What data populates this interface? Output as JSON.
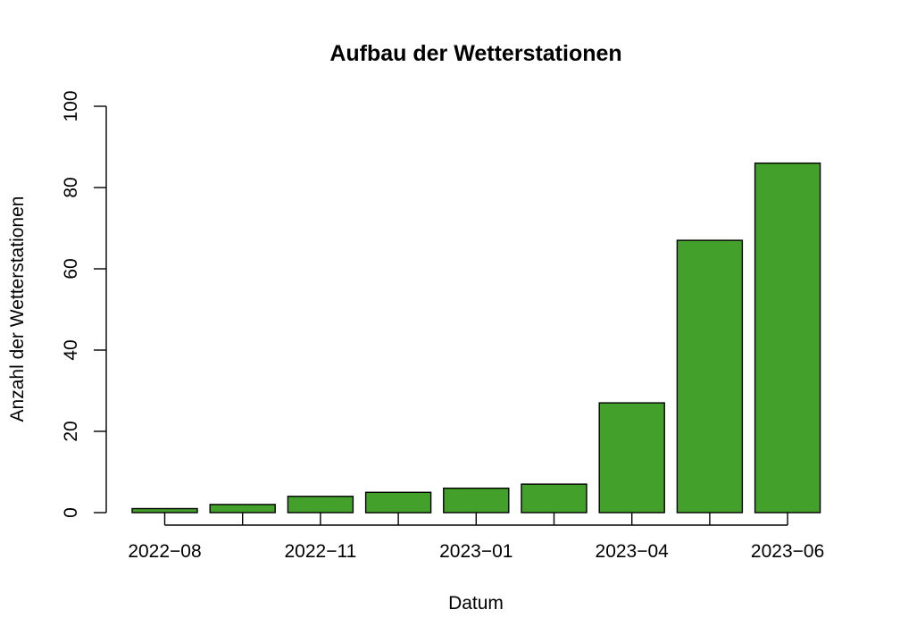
{
  "chart_data": {
    "type": "bar",
    "title": "Aufbau der Wetterstationen",
    "xlabel": "Datum",
    "ylabel": "Anzahl der Wetterstationen",
    "ylim": [
      0,
      100
    ],
    "yticks": [
      0,
      20,
      40,
      60,
      80,
      100
    ],
    "categories": [
      "2022-08",
      "",
      "2022-11",
      "",
      "2023-01",
      "",
      "2023-04",
      "",
      "2023-06"
    ],
    "x_tick_labels": [
      "2022−08",
      "2022−11",
      "2023−01",
      "2023−04",
      "2023−06"
    ],
    "values": [
      1,
      2,
      4,
      5,
      6,
      7,
      27,
      67,
      86
    ],
    "bar_color": "#43A02A",
    "grid": false,
    "legend": "none"
  }
}
